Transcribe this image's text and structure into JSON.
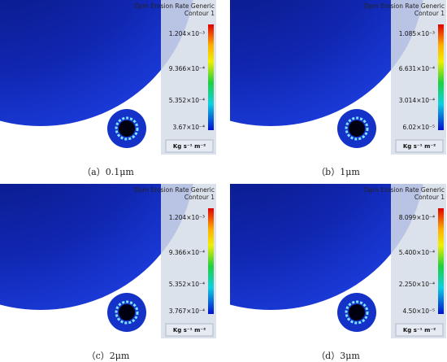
{
  "panels": [
    {
      "title": "Dpm Erosion Rate Generic",
      "subtitle": "Contour 1",
      "legend_labels": [
        "1.204×10⁻³",
        "9.366×10⁻⁴",
        "5.352×10⁻⁴",
        "3.67×10⁻⁴"
      ],
      "unit": "Kg s⁻¹ m⁻²",
      "caption": "（a）0.1μm"
    },
    {
      "title": "Dpm Erosion Rate Generic",
      "subtitle": "Contour 1",
      "legend_labels": [
        "1.085×10⁻³",
        "6.631×10⁻⁴",
        "3.014×10⁻⁴",
        "6.02×10⁻⁵"
      ],
      "unit": "Kg s⁻¹ m⁻²",
      "caption": "（b）1μm"
    },
    {
      "title": "Dpm Erosion Rate Generic",
      "subtitle": "Contour 1",
      "legend_labels": [
        "1.204×10⁻³",
        "9.366×10⁻⁴",
        "5.352×10⁻⁴",
        "3.767×10⁻⁴"
      ],
      "unit": "Kg s⁻¹ m⁻²",
      "caption": "（c）2μm"
    },
    {
      "title": "Dpm Erosion Rate Generic",
      "subtitle": "Contour 1",
      "legend_labels": [
        "8.099×10⁻⁴",
        "5.400×10⁻⁴",
        "2.250×10⁻⁴",
        "4.50×10⁻⁵"
      ],
      "unit": "Kg s⁻¹ m⁻²",
      "caption": "（d）3μm"
    }
  ]
}
